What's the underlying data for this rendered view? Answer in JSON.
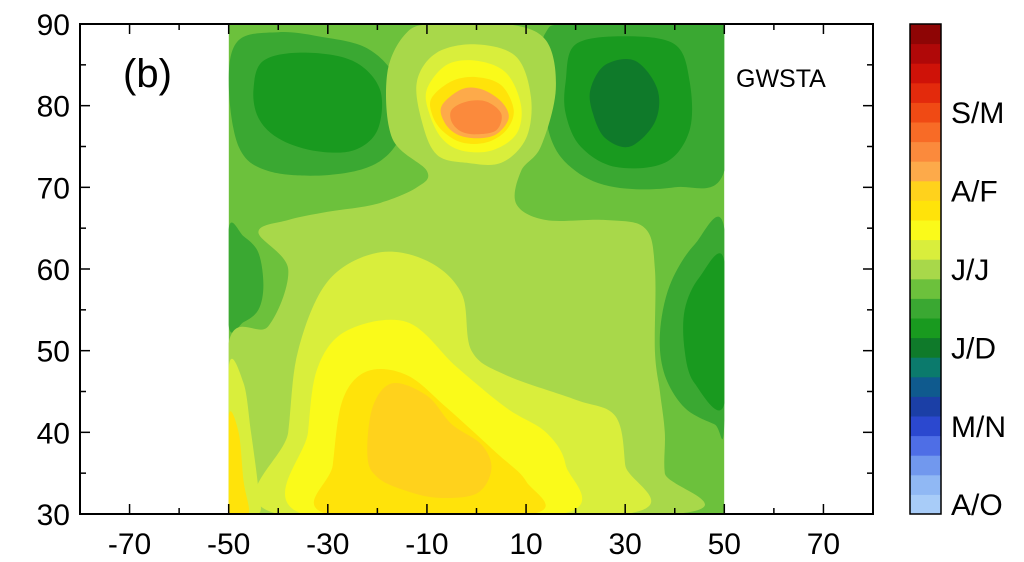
{
  "chart_data": {
    "type": "heatmap",
    "title": "",
    "xlabel": "",
    "ylabel": "",
    "panel_label": "(b)",
    "method_label": "GWSTA",
    "xlim": [
      -80,
      80
    ],
    "ylim": [
      30,
      90
    ],
    "data_xrange": [
      -50,
      50
    ],
    "x_ticks": [
      -70,
      -50,
      -30,
      -10,
      10,
      30,
      50,
      70
    ],
    "y_ticks": [
      30,
      40,
      50,
      60,
      70,
      80,
      90
    ],
    "levels": [
      {
        "name": "level-1",
        "color": "#a8ccf8"
      },
      {
        "name": "level-2",
        "color": "#90b8f4"
      },
      {
        "name": "level-3",
        "color": "#7198ee"
      },
      {
        "name": "level-4",
        "color": "#4e6ee6"
      },
      {
        "name": "level-5",
        "color": "#2b48cf"
      },
      {
        "name": "level-6",
        "color": "#1b3fa6"
      },
      {
        "name": "level-7",
        "color": "#0f5a8e"
      },
      {
        "name": "level-8",
        "color": "#0b7a6c"
      },
      {
        "name": "level-9",
        "color": "#0f7a2a"
      },
      {
        "name": "level-10",
        "color": "#199a1f"
      },
      {
        "name": "level-11",
        "color": "#3aa832"
      },
      {
        "name": "level-12",
        "color": "#6cc13c"
      },
      {
        "name": "level-13",
        "color": "#a8d84a"
      },
      {
        "name": "level-14",
        "color": "#d9ee3c"
      },
      {
        "name": "level-15",
        "color": "#fafa1a"
      },
      {
        "name": "level-16",
        "color": "#ffe30a"
      },
      {
        "name": "level-17",
        "color": "#ffd21c"
      },
      {
        "name": "level-18",
        "color": "#fdaa4a"
      },
      {
        "name": "level-19",
        "color": "#fb8a3c"
      },
      {
        "name": "level-20",
        "color": "#f86b26"
      },
      {
        "name": "level-21",
        "color": "#f04a14"
      },
      {
        "name": "level-22",
        "color": "#e32a0c"
      },
      {
        "name": "level-23",
        "color": "#cf1208"
      },
      {
        "name": "level-24",
        "color": "#b00808"
      },
      {
        "name": "level-25",
        "color": "#8e0505"
      }
    ],
    "colorbar_labels": [
      {
        "label": "A/O",
        "level": 1
      },
      {
        "label": "M/N",
        "level": 5
      },
      {
        "label": "J/D",
        "level": 9
      },
      {
        "label": "J/J",
        "level": 13
      },
      {
        "label": "A/F",
        "level": 17
      },
      {
        "label": "S/M",
        "level": 21
      }
    ],
    "background_level": 12,
    "regions": [
      {
        "name": "upper-left-outer-dark-green",
        "level": 11,
        "points": [
          [
            -50,
            83
          ],
          [
            -48,
            88
          ],
          [
            -40,
            89
          ],
          [
            -32,
            88.5
          ],
          [
            -22,
            87
          ],
          [
            -16,
            83
          ],
          [
            -15,
            77
          ],
          [
            -20,
            73
          ],
          [
            -30,
            71.5
          ],
          [
            -42,
            72
          ],
          [
            -48,
            75
          ]
        ]
      },
      {
        "name": "upper-left-inner-dark-green",
        "level": 10,
        "points": [
          [
            -45,
            82
          ],
          [
            -43,
            85.5
          ],
          [
            -35,
            86.5
          ],
          [
            -25,
            85.5
          ],
          [
            -19.5,
            82
          ],
          [
            -20,
            77
          ],
          [
            -25,
            74.5
          ],
          [
            -33,
            74.5
          ],
          [
            -40,
            76
          ],
          [
            -44,
            78.5
          ]
        ]
      },
      {
        "name": "upper-left-tip-green",
        "level": 11,
        "points": [
          [
            -8,
            90
          ],
          [
            -8,
            88
          ],
          [
            -2,
            88.5
          ],
          [
            2,
            90
          ]
        ]
      },
      {
        "name": "upper-right-outer-dark-green",
        "level": 11,
        "points": [
          [
            13,
            84
          ],
          [
            14,
            89
          ],
          [
            20,
            90
          ],
          [
            50,
            90
          ],
          [
            50,
            72
          ],
          [
            40,
            70
          ],
          [
            28,
            70
          ],
          [
            20,
            72
          ],
          [
            15,
            76
          ]
        ]
      },
      {
        "name": "upper-right-mid-green",
        "level": 10,
        "points": [
          [
            18,
            83
          ],
          [
            20,
            87.5
          ],
          [
            30,
            88.5
          ],
          [
            40,
            87.5
          ],
          [
            43,
            83
          ],
          [
            43,
            77
          ],
          [
            38,
            73
          ],
          [
            28,
            72.5
          ],
          [
            21,
            75
          ],
          [
            18,
            79
          ]
        ]
      },
      {
        "name": "upper-right-core-green",
        "level": 9,
        "points": [
          [
            23,
            82
          ],
          [
            26,
            85
          ],
          [
            32,
            85.5
          ],
          [
            36.5,
            82
          ],
          [
            36,
            78
          ],
          [
            31,
            75
          ],
          [
            26,
            76
          ],
          [
            23.5,
            79
          ]
        ]
      },
      {
        "name": "left-lobe-green",
        "level": 11,
        "points": [
          [
            -50,
            65
          ],
          [
            -47,
            64
          ],
          [
            -44,
            62
          ],
          [
            -43,
            58
          ],
          [
            -44,
            55
          ],
          [
            -47,
            53.5
          ],
          [
            -50,
            53
          ]
        ]
      },
      {
        "name": "right-lobe-outer-green",
        "level": 11,
        "points": [
          [
            50,
            65
          ],
          [
            44,
            63
          ],
          [
            39,
            58
          ],
          [
            37,
            52
          ],
          [
            38,
            47
          ],
          [
            42,
            43
          ],
          [
            48,
            41
          ],
          [
            50,
            41
          ]
        ]
      },
      {
        "name": "right-lobe-inner-green",
        "level": 10,
        "points": [
          [
            50,
            61
          ],
          [
            45,
            59
          ],
          [
            42,
            55
          ],
          [
            42,
            50
          ],
          [
            44,
            46
          ],
          [
            50,
            43.5
          ]
        ]
      },
      {
        "name": "top-center-light-green",
        "level": 13,
        "points": [
          [
            -18,
            84
          ],
          [
            -14,
            89
          ],
          [
            -8,
            90
          ],
          [
            6,
            90
          ],
          [
            14,
            88
          ],
          [
            16,
            82
          ],
          [
            13,
            75
          ],
          [
            9,
            72
          ],
          [
            8,
            68
          ],
          [
            14,
            66
          ],
          [
            26,
            66
          ],
          [
            34,
            65
          ],
          [
            36,
            60
          ],
          [
            36,
            50
          ],
          [
            37,
            45
          ],
          [
            38,
            40
          ],
          [
            38,
            35
          ],
          [
            40,
            30
          ],
          [
            -50,
            30
          ],
          [
            -50,
            51
          ],
          [
            -42,
            53
          ],
          [
            -38,
            60
          ],
          [
            -44,
            64.5
          ],
          [
            -38,
            66
          ],
          [
            -30,
            67
          ],
          [
            -20,
            68
          ],
          [
            -12,
            70
          ],
          [
            -10,
            72
          ],
          [
            -17,
            76
          ]
        ]
      },
      {
        "name": "central-yellow-outer",
        "level": 14,
        "points": [
          [
            -40,
            30
          ],
          [
            -38,
            40
          ],
          [
            -36,
            50
          ],
          [
            -30,
            58.5
          ],
          [
            -20,
            62
          ],
          [
            -10,
            61
          ],
          [
            -3,
            57
          ],
          [
            -1,
            50
          ],
          [
            6,
            47
          ],
          [
            20,
            44
          ],
          [
            28,
            42
          ],
          [
            30,
            36
          ],
          [
            30,
            30
          ]
        ]
      },
      {
        "name": "central-yellow",
        "level": 15,
        "points": [
          [
            -35,
            30
          ],
          [
            -34,
            40
          ],
          [
            -32,
            48
          ],
          [
            -26,
            52.5
          ],
          [
            -14,
            53.5
          ],
          [
            -4,
            48
          ],
          [
            6,
            43
          ],
          [
            14,
            40
          ],
          [
            18,
            36
          ],
          [
            17,
            30
          ]
        ]
      },
      {
        "name": "central-golden",
        "level": 16,
        "points": [
          [
            -30,
            30
          ],
          [
            -29,
            36
          ],
          [
            -27,
            44
          ],
          [
            -22,
            47.5
          ],
          [
            -14,
            47
          ],
          [
            -6,
            43
          ],
          [
            4,
            37.5
          ],
          [
            10,
            34
          ],
          [
            11,
            30
          ]
        ]
      },
      {
        "name": "central-orange-core",
        "level": 17,
        "points": [
          [
            -22,
            37
          ],
          [
            -21,
            43
          ],
          [
            -17,
            46
          ],
          [
            -10,
            44.5
          ],
          [
            -5,
            41
          ],
          [
            1,
            38.5
          ],
          [
            3,
            35.5
          ],
          [
            0,
            32.5
          ],
          [
            -8,
            32
          ],
          [
            -15,
            33
          ],
          [
            -20,
            34.5
          ]
        ]
      },
      {
        "name": "bottom-left-yellow",
        "level": 14,
        "points": [
          [
            -50,
            48
          ],
          [
            -47,
            46
          ],
          [
            -45.5,
            40
          ],
          [
            -44,
            33
          ],
          [
            -44,
            30
          ],
          [
            -50,
            30
          ]
        ]
      },
      {
        "name": "bottom-left-golden",
        "level": 16,
        "points": [
          [
            -50,
            42
          ],
          [
            -48,
            40
          ],
          [
            -47,
            34
          ],
          [
            -46,
            30
          ],
          [
            -50,
            30
          ]
        ]
      },
      {
        "name": "top-blob-pale-green",
        "level": 13,
        "points": [
          [
            -14,
            84
          ],
          [
            -10,
            88
          ],
          [
            -2,
            89.5
          ],
          [
            8,
            88
          ],
          [
            12,
            83
          ],
          [
            13,
            76
          ],
          [
            8,
            72
          ],
          [
            0,
            71
          ],
          [
            -8,
            72
          ],
          [
            -12,
            76
          ]
        ]
      },
      {
        "name": "top-blob-yellow-green",
        "level": 14,
        "points": [
          [
            -12,
            83
          ],
          [
            -8,
            86.5
          ],
          [
            0,
            87.5
          ],
          [
            8,
            86
          ],
          [
            11,
            81
          ],
          [
            10,
            76
          ],
          [
            5,
            73
          ],
          [
            -2,
            73
          ],
          [
            -8,
            74
          ],
          [
            -11,
            78
          ]
        ]
      },
      {
        "name": "top-blob-yellow",
        "level": 15,
        "points": [
          [
            -10,
            82
          ],
          [
            -6,
            85
          ],
          [
            0,
            85.5
          ],
          [
            6,
            84
          ],
          [
            9,
            80
          ],
          [
            8,
            76.5
          ],
          [
            3,
            74.5
          ],
          [
            -3,
            74.5
          ],
          [
            -7,
            76
          ],
          [
            -9.5,
            79
          ]
        ]
      },
      {
        "name": "top-blob-golden",
        "level": 16,
        "points": [
          [
            -9,
            81
          ],
          [
            -5,
            83
          ],
          [
            0,
            83.5
          ],
          [
            5,
            82.5
          ],
          [
            7.5,
            79.5
          ],
          [
            6,
            77
          ],
          [
            2,
            75.5
          ],
          [
            -3,
            75.5
          ],
          [
            -7,
            77
          ],
          [
            -9,
            79
          ]
        ]
      },
      {
        "name": "top-blob-light-orange",
        "level": 18,
        "points": [
          [
            -7,
            80
          ],
          [
            -3,
            82
          ],
          [
            1,
            82
          ],
          [
            5,
            80.5
          ],
          [
            6.5,
            78.5
          ],
          [
            4,
            76.5
          ],
          [
            0,
            76
          ],
          [
            -4,
            76.5
          ],
          [
            -6.5,
            78
          ]
        ]
      },
      {
        "name": "top-blob-orange-core",
        "level": 19,
        "points": [
          [
            -5,
            79.5
          ],
          [
            -2,
            80.5
          ],
          [
            2,
            80.5
          ],
          [
            5,
            79
          ],
          [
            4,
            77
          ],
          [
            0,
            76.5
          ],
          [
            -3,
            76.8
          ],
          [
            -5,
            78
          ]
        ]
      }
    ]
  }
}
